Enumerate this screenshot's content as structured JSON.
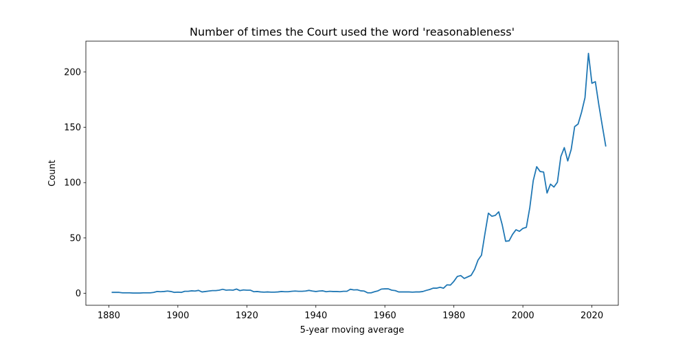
{
  "chart_data": {
    "type": "line",
    "title": "Number of times the Court used the word 'reasonableness'",
    "xlabel": "5-year moving average",
    "ylabel": "Count",
    "xlim": [
      1873.35,
      2027.65
    ],
    "ylim": [
      -10.85,
      227.85
    ],
    "xticks": [
      1880,
      1900,
      1920,
      1940,
      1960,
      1980,
      2000,
      2020
    ],
    "yticks": [
      0,
      50,
      100,
      150,
      200
    ],
    "grid": false,
    "line_color": "#1f77b4",
    "series": [
      {
        "x": [
          1881,
          1882,
          1883,
          1884,
          1885,
          1886,
          1887,
          1888,
          1889,
          1890,
          1891,
          1892,
          1893,
          1894,
          1895,
          1896,
          1897,
          1898,
          1899,
          1900,
          1901,
          1902,
          1903,
          1904,
          1905,
          1906,
          1907,
          1908,
          1909,
          1910,
          1911,
          1912,
          1913,
          1914,
          1915,
          1916,
          1917,
          1918,
          1919,
          1920,
          1921,
          1922,
          1923,
          1924,
          1925,
          1926,
          1927,
          1928,
          1929,
          1930,
          1931,
          1932,
          1933,
          1934,
          1935,
          1936,
          1937,
          1938,
          1939,
          1940,
          1941,
          1942,
          1943,
          1944,
          1945,
          1946,
          1947,
          1948,
          1949,
          1950,
          1951,
          1952,
          1953,
          1954,
          1955,
          1956,
          1957,
          1958,
          1959,
          1960,
          1961,
          1962,
          1963,
          1964,
          1965,
          1966,
          1967,
          1968,
          1969,
          1970,
          1971,
          1972,
          1973,
          1974,
          1975,
          1976,
          1977,
          1978,
          1979,
          1980,
          1981,
          1982,
          1983,
          1984,
          1985,
          1986,
          1987,
          1988,
          1989,
          1990,
          1991,
          1992,
          1993,
          1994,
          1995,
          1996,
          1997,
          1998,
          1999,
          2000,
          2001,
          2002,
          2003,
          2004,
          2005,
          2006,
          2007,
          2008,
          2009,
          2010,
          2011,
          2012,
          2013,
          2014,
          2015,
          2016,
          2017,
          2018,
          2019,
          2020,
          2021,
          2022,
          2023,
          2024
        ],
        "values": [
          0.8,
          0.8,
          0.8,
          0.4,
          0.4,
          0.4,
          0.2,
          0.2,
          0.2,
          0.4,
          0.4,
          0.4,
          0.8,
          1.6,
          1.4,
          1.6,
          2.0,
          1.6,
          0.8,
          1.0,
          0.8,
          1.8,
          1.8,
          2.2,
          2.0,
          2.6,
          1.2,
          1.6,
          2.0,
          2.4,
          2.4,
          2.8,
          3.6,
          2.8,
          3.0,
          2.8,
          3.8,
          2.4,
          3.0,
          2.8,
          2.8,
          1.4,
          1.6,
          1.2,
          1.0,
          1.2,
          1.0,
          1.0,
          1.2,
          1.6,
          1.4,
          1.4,
          1.8,
          2.0,
          1.8,
          1.8,
          2.0,
          2.6,
          2.0,
          1.6,
          2.0,
          2.2,
          1.4,
          1.8,
          1.6,
          1.6,
          1.4,
          1.8,
          1.8,
          3.6,
          3.0,
          3.2,
          2.2,
          2.0,
          0.4,
          0.4,
          1.4,
          2.2,
          3.8,
          4.0,
          4.0,
          2.8,
          2.4,
          1.2,
          1.2,
          1.2,
          1.2,
          1.0,
          1.2,
          1.2,
          1.6,
          2.6,
          3.4,
          4.6,
          4.6,
          5.4,
          4.6,
          7.6,
          7.4,
          10.8,
          15.2,
          16.0,
          13.4,
          14.8,
          16.2,
          21.6,
          30.0,
          34.4,
          53.8,
          72.4,
          69.6,
          70.4,
          73.6,
          62.0,
          47.0,
          47.4,
          53.2,
          57.4,
          56.0,
          58.6,
          59.6,
          77.4,
          101.8,
          114.4,
          110.0,
          109.6,
          90.6,
          98.6,
          96.0,
          100.4,
          123.6,
          131.6,
          119.6,
          130.0,
          150.6,
          153.0,
          163.6,
          176.8,
          216.8,
          189.8,
          191.2,
          170.4,
          151.6,
          133.2
        ]
      }
    ]
  }
}
